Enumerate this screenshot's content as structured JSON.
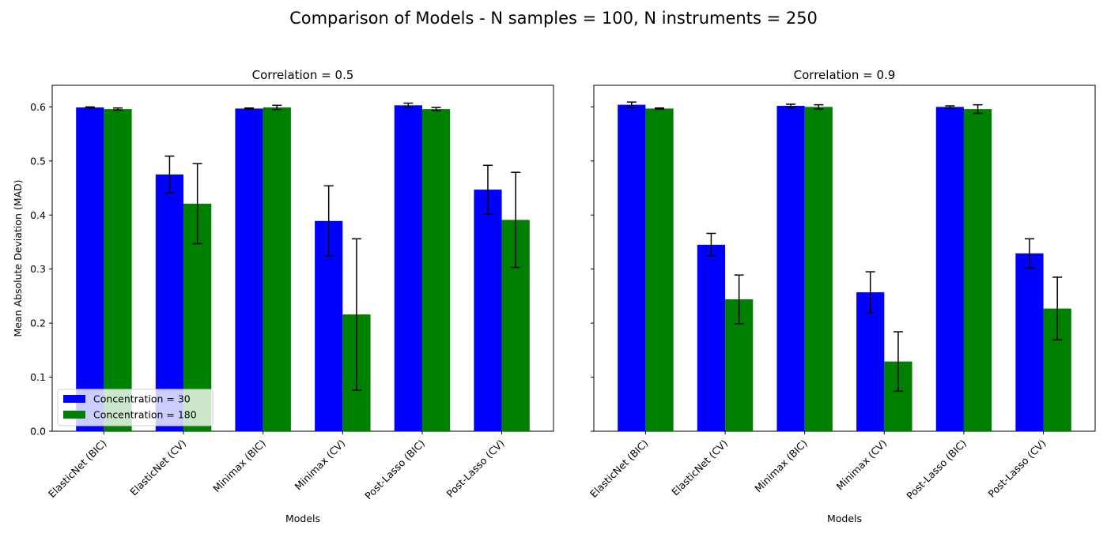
{
  "chart_data": {
    "title": "Comparison of Models - N samples = 100, N instruments = 250",
    "type": "bar",
    "ylabel": "Mean Absolute Deviation (MAD)",
    "xlabel": "Models",
    "ylim": [
      0,
      0.64
    ],
    "yticks": [
      0.0,
      0.1,
      0.2,
      0.3,
      0.4,
      0.5,
      0.6
    ],
    "ytick_labels": [
      "0.0",
      "0.1",
      "0.2",
      "0.3",
      "0.4",
      "0.5",
      "0.6"
    ],
    "categories": [
      "ElasticNet (BIC)",
      "ElasticNet (CV)",
      "Minimax (BIC)",
      "Minimax (CV)",
      "Post-Lasso (BIC)",
      "Post-Lasso (CV)"
    ],
    "legend": {
      "placement": "lower-left",
      "entries": [
        "Concentration = 30",
        "Concentration = 180"
      ]
    },
    "series_colors": [
      "#0000ff",
      "#008000"
    ],
    "panels": [
      {
        "title": "Correlation = 0.5",
        "series": [
          {
            "name": "Concentration = 30",
            "values": [
              0.599,
              0.475,
              0.597,
              0.389,
              0.603,
              0.447
            ],
            "errors": [
              0.001,
              0.034,
              0.001,
              0.065,
              0.004,
              0.045
            ]
          },
          {
            "name": "Concentration = 180",
            "values": [
              0.596,
              0.421,
              0.599,
              0.216,
              0.596,
              0.391
            ],
            "errors": [
              0.002,
              0.074,
              0.004,
              0.14,
              0.003,
              0.088
            ]
          }
        ]
      },
      {
        "title": "Correlation = 0.9",
        "series": [
          {
            "name": "Concentration = 30",
            "values": [
              0.604,
              0.345,
              0.602,
              0.257,
              0.6,
              0.329
            ],
            "errors": [
              0.005,
              0.021,
              0.003,
              0.038,
              0.002,
              0.027
            ]
          },
          {
            "name": "Concentration = 180",
            "values": [
              0.597,
              0.244,
              0.6,
              0.129,
              0.596,
              0.227
            ],
            "errors": [
              0.001,
              0.045,
              0.004,
              0.055,
              0.008,
              0.058
            ]
          }
        ]
      }
    ]
  }
}
